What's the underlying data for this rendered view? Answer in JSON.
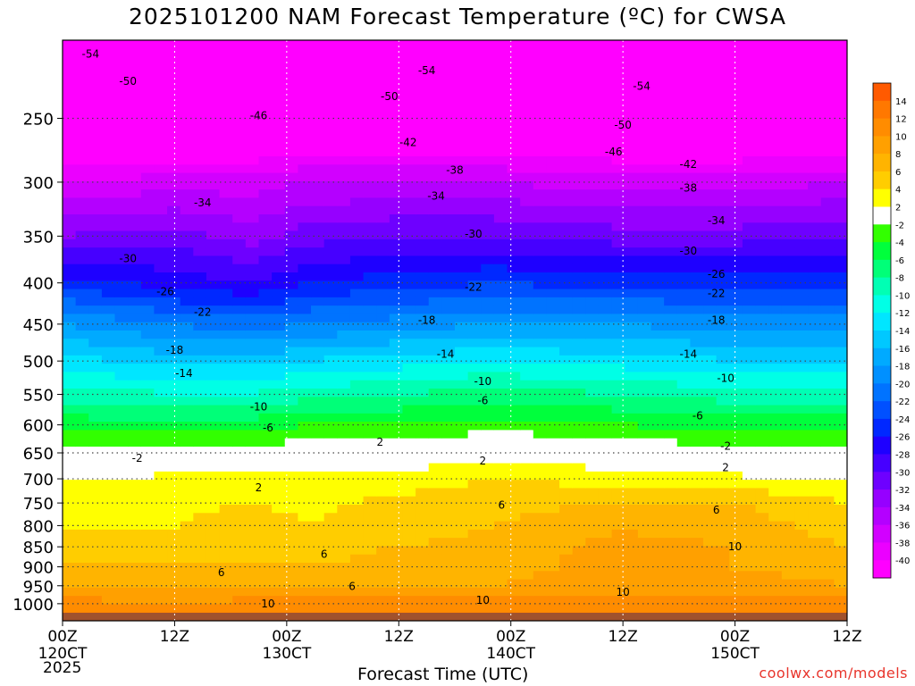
{
  "title": "2025101200 NAM Forecast Temperature (ºC) for CWSA",
  "xlabel": "Forecast Time (UTC)",
  "credit": "coolwx.com/models",
  "year": "2025",
  "chart_data": {
    "type": "heatmap",
    "subtype": "filled-contour time-height cross section",
    "title": "2025101200 NAM Forecast Temperature (ºC) for CWSA",
    "xlabel": "Forecast Time (UTC)",
    "ylabel": "",
    "y_scale": "log-pressure (inverted)",
    "ylim": [
      1050,
      200
    ],
    "xlim_hours": [
      0,
      84
    ],
    "y_ticks": [
      250,
      300,
      350,
      400,
      450,
      500,
      550,
      600,
      650,
      700,
      750,
      800,
      850,
      900,
      950,
      1000
    ],
    "x_ticks": [
      {
        "h": 0,
        "time": "00Z",
        "date": "120CT"
      },
      {
        "h": 12,
        "time": "12Z",
        "date": ""
      },
      {
        "h": 24,
        "time": "00Z",
        "date": "130CT"
      },
      {
        "h": 36,
        "time": "12Z",
        "date": ""
      },
      {
        "h": 48,
        "time": "00Z",
        "date": "140CT"
      },
      {
        "h": 60,
        "time": "12Z",
        "date": ""
      },
      {
        "h": 72,
        "time": "00Z",
        "date": "150CT"
      },
      {
        "h": 84,
        "time": "12Z",
        "date": ""
      }
    ],
    "colorbar": {
      "labels": [
        "14",
        "12",
        "10",
        "8",
        "6",
        "4",
        "2",
        "-2",
        "-4",
        "-6",
        "-8",
        "-10",
        "-12",
        "-14",
        "-16",
        "-18",
        "-20",
        "-22",
        "-24",
        "-26",
        "-28",
        "-30",
        "-32",
        "-34",
        "-36",
        "-38",
        "-40"
      ],
      "bands": [
        {
          "lo": 14,
          "hi": 16,
          "color": "#ff5a00"
        },
        {
          "lo": 12,
          "hi": 14,
          "color": "#ff7800"
        },
        {
          "lo": 10,
          "hi": 12,
          "color": "#ff8c00"
        },
        {
          "lo": 8,
          "hi": 10,
          "color": "#ffa000"
        },
        {
          "lo": 6,
          "hi": 8,
          "color": "#ffb400"
        },
        {
          "lo": 4,
          "hi": 6,
          "color": "#ffcd00"
        },
        {
          "lo": 2,
          "hi": 4,
          "color": "#ffff00"
        },
        {
          "lo": -2,
          "hi": 2,
          "color": "#ffffff"
        },
        {
          "lo": -4,
          "hi": -2,
          "color": "#32ff00"
        },
        {
          "lo": -6,
          "hi": -4,
          "color": "#00ff3c"
        },
        {
          "lo": -8,
          "hi": -6,
          "color": "#00ff78"
        },
        {
          "lo": -10,
          "hi": -8,
          "color": "#00ffb4"
        },
        {
          "lo": -12,
          "hi": -10,
          "color": "#00ffe6"
        },
        {
          "lo": -14,
          "hi": -12,
          "color": "#00e6ff"
        },
        {
          "lo": -16,
          "hi": -14,
          "color": "#00c8ff"
        },
        {
          "lo": -18,
          "hi": -16,
          "color": "#00aaff"
        },
        {
          "lo": -20,
          "hi": -18,
          "color": "#0090ff"
        },
        {
          "lo": -22,
          "hi": -20,
          "color": "#0073ff"
        },
        {
          "lo": -24,
          "hi": -22,
          "color": "#0050ff"
        },
        {
          "lo": -26,
          "hi": -24,
          "color": "#0028ff"
        },
        {
          "lo": -28,
          "hi": -26,
          "color": "#1e00ff"
        },
        {
          "lo": -30,
          "hi": -28,
          "color": "#4600ff"
        },
        {
          "lo": -32,
          "hi": -30,
          "color": "#6e00ff"
        },
        {
          "lo": -34,
          "hi": -32,
          "color": "#9600ff"
        },
        {
          "lo": -36,
          "hi": -34,
          "color": "#b400ff"
        },
        {
          "lo": -38,
          "hi": -36,
          "color": "#d200ff"
        },
        {
          "lo": -40,
          "hi": -38,
          "color": "#eb00ff"
        },
        {
          "lo": -60,
          "hi": -40,
          "color": "#ff00ff"
        }
      ]
    },
    "profiles": [
      {
        "h": 0,
        "levels": [
          [
            1050,
            14
          ],
          [
            1000,
            11
          ],
          [
            950,
            8
          ],
          [
            900,
            6
          ],
          [
            850,
            5
          ],
          [
            800,
            4
          ],
          [
            750,
            3.5
          ],
          [
            700,
            2
          ],
          [
            650,
            -1
          ],
          [
            600,
            -5
          ],
          [
            550,
            -9
          ],
          [
            500,
            -13
          ],
          [
            450,
            -18
          ],
          [
            400,
            -25
          ],
          [
            350,
            -32
          ],
          [
            300,
            -38
          ],
          [
            250,
            -46
          ],
          [
            200,
            -52
          ]
        ]
      },
      {
        "h": 12,
        "levels": [
          [
            1050,
            14
          ],
          [
            1000,
            10
          ],
          [
            950,
            7
          ],
          [
            900,
            6
          ],
          [
            850,
            5
          ],
          [
            800,
            4
          ],
          [
            750,
            3.5
          ],
          [
            700,
            2.5
          ],
          [
            650,
            -1
          ],
          [
            600,
            -5
          ],
          [
            550,
            -10
          ],
          [
            500,
            -15
          ],
          [
            450,
            -20
          ],
          [
            400,
            -27
          ],
          [
            350,
            -31
          ],
          [
            300,
            -37
          ],
          [
            250,
            -46
          ],
          [
            200,
            -53
          ]
        ]
      },
      {
        "h": 20,
        "levels": [
          [
            1050,
            14
          ],
          [
            1000,
            11
          ],
          [
            950,
            7
          ],
          [
            900,
            6
          ],
          [
            850,
            6
          ],
          [
            800,
            5
          ],
          [
            750,
            4
          ],
          [
            700,
            2.5
          ],
          [
            650,
            -1
          ],
          [
            600,
            -5
          ],
          [
            550,
            -10
          ],
          [
            500,
            -15
          ],
          [
            450,
            -21
          ],
          [
            400,
            -28
          ],
          [
            350,
            -33
          ],
          [
            300,
            -37
          ],
          [
            250,
            -46
          ],
          [
            200,
            -53
          ]
        ]
      },
      {
        "h": 26,
        "levels": [
          [
            1050,
            14
          ],
          [
            1000,
            11
          ],
          [
            950,
            7
          ],
          [
            900,
            6
          ],
          [
            850,
            5
          ],
          [
            800,
            4
          ],
          [
            750,
            3.5
          ],
          [
            700,
            2.5
          ],
          [
            650,
            -0.5
          ],
          [
            600,
            -4
          ],
          [
            550,
            -9
          ],
          [
            500,
            -14
          ],
          [
            450,
            -20
          ],
          [
            400,
            -26
          ],
          [
            350,
            -31
          ],
          [
            300,
            -36
          ],
          [
            250,
            -45
          ],
          [
            200,
            -54
          ]
        ]
      },
      {
        "h": 36,
        "levels": [
          [
            1050,
            14
          ],
          [
            1000,
            11
          ],
          [
            950,
            8
          ],
          [
            900,
            7
          ],
          [
            850,
            6
          ],
          [
            800,
            5
          ],
          [
            750,
            4.5
          ],
          [
            700,
            3
          ],
          [
            650,
            0
          ],
          [
            600,
            -4
          ],
          [
            550,
            -8
          ],
          [
            500,
            -13
          ],
          [
            450,
            -19
          ],
          [
            400,
            -25
          ],
          [
            350,
            -30
          ],
          [
            300,
            -36
          ],
          [
            250,
            -45
          ],
          [
            200,
            -54
          ]
        ]
      },
      {
        "h": 46,
        "levels": [
          [
            1050,
            14
          ],
          [
            1000,
            11
          ],
          [
            950,
            8
          ],
          [
            900,
            7
          ],
          [
            850,
            6.5
          ],
          [
            800,
            6
          ],
          [
            750,
            5.5
          ],
          [
            700,
            4
          ],
          [
            650,
            1
          ],
          [
            600,
            -3
          ],
          [
            550,
            -7
          ],
          [
            500,
            -12
          ],
          [
            450,
            -18
          ],
          [
            400,
            -24
          ],
          [
            350,
            -30
          ],
          [
            300,
            -36
          ],
          [
            250,
            -45
          ],
          [
            200,
            -54
          ]
        ]
      },
      {
        "h": 60,
        "levels": [
          [
            1050,
            14
          ],
          [
            1000,
            11
          ],
          [
            950,
            9
          ],
          [
            900,
            9
          ],
          [
            850,
            9
          ],
          [
            800,
            7.5
          ],
          [
            750,
            6
          ],
          [
            700,
            3
          ],
          [
            650,
            0
          ],
          [
            600,
            -4
          ],
          [
            550,
            -8
          ],
          [
            500,
            -13
          ],
          [
            450,
            -18
          ],
          [
            400,
            -25
          ],
          [
            350,
            -31
          ],
          [
            300,
            -37
          ],
          [
            250,
            -46
          ],
          [
            200,
            -54
          ]
        ]
      },
      {
        "h": 72,
        "levels": [
          [
            1050,
            14
          ],
          [
            1000,
            11
          ],
          [
            950,
            9
          ],
          [
            900,
            8
          ],
          [
            850,
            8
          ],
          [
            800,
            7
          ],
          [
            750,
            6
          ],
          [
            700,
            2.5
          ],
          [
            650,
            -1
          ],
          [
            600,
            -5
          ],
          [
            550,
            -9
          ],
          [
            500,
            -14
          ],
          [
            450,
            -19
          ],
          [
            400,
            -25
          ],
          [
            350,
            -31
          ],
          [
            300,
            -37
          ],
          [
            250,
            -46
          ],
          [
            200,
            -54
          ]
        ]
      },
      {
        "h": 84,
        "levels": [
          [
            1050,
            14
          ],
          [
            1000,
            11
          ],
          [
            950,
            8
          ],
          [
            900,
            7
          ],
          [
            850,
            6
          ],
          [
            800,
            5
          ],
          [
            750,
            4
          ],
          [
            700,
            1.5
          ],
          [
            650,
            -1
          ],
          [
            600,
            -5
          ],
          [
            550,
            -9
          ],
          [
            500,
            -14
          ],
          [
            450,
            -19
          ],
          [
            400,
            -25
          ],
          [
            350,
            -30
          ],
          [
            300,
            -36
          ],
          [
            250,
            -46
          ],
          [
            200,
            -54
          ]
        ]
      }
    ],
    "contour_labels": [
      {
        "text": "-54",
        "h": 3,
        "p": 208
      },
      {
        "text": "-50",
        "h": 7,
        "p": 225
      },
      {
        "text": "-46",
        "h": 21,
        "p": 248
      },
      {
        "text": "-42",
        "h": 37,
        "p": 268
      },
      {
        "text": "-38",
        "h": 42,
        "p": 290
      },
      {
        "text": "-34",
        "h": 15,
        "p": 318
      },
      {
        "text": "-34",
        "h": 40,
        "p": 312
      },
      {
        "text": "-30",
        "h": 7,
        "p": 373
      },
      {
        "text": "-26",
        "h": 11,
        "p": 410
      },
      {
        "text": "-22",
        "h": 15,
        "p": 435
      },
      {
        "text": "-18",
        "h": 12,
        "p": 485
      },
      {
        "text": "-14",
        "h": 13,
        "p": 518
      },
      {
        "text": "-10",
        "h": 21,
        "p": 570
      },
      {
        "text": "-6",
        "h": 22,
        "p": 605
      },
      {
        "text": "-2",
        "h": 8,
        "p": 660
      },
      {
        "text": "2",
        "h": 21,
        "p": 718
      },
      {
        "text": "6",
        "h": 17,
        "p": 915
      },
      {
        "text": "6",
        "h": 28,
        "p": 868
      },
      {
        "text": "6",
        "h": 31,
        "p": 952
      },
      {
        "text": "10",
        "h": 22,
        "p": 1000
      },
      {
        "text": "-54",
        "h": 39,
        "p": 218
      },
      {
        "text": "-50",
        "h": 35,
        "p": 235
      },
      {
        "text": "-30",
        "h": 44,
        "p": 348
      },
      {
        "text": "-22",
        "h": 44,
        "p": 405
      },
      {
        "text": "-18",
        "h": 39,
        "p": 445
      },
      {
        "text": "-14",
        "h": 41,
        "p": 490
      },
      {
        "text": "-10",
        "h": 45,
        "p": 530
      },
      {
        "text": "-6",
        "h": 45,
        "p": 560
      },
      {
        "text": "2",
        "h": 34,
        "p": 630
      },
      {
        "text": "2",
        "h": 45,
        "p": 665
      },
      {
        "text": "6",
        "h": 47,
        "p": 755
      },
      {
        "text": "10",
        "h": 45,
        "p": 990
      },
      {
        "text": "-54",
        "h": 62,
        "p": 228
      },
      {
        "text": "-50",
        "h": 60,
        "p": 255
      },
      {
        "text": "-46",
        "h": 59,
        "p": 275
      },
      {
        "text": "-42",
        "h": 67,
        "p": 285
      },
      {
        "text": "-38",
        "h": 67,
        "p": 305
      },
      {
        "text": "-34",
        "h": 70,
        "p": 335
      },
      {
        "text": "-30",
        "h": 67,
        "p": 365
      },
      {
        "text": "-26",
        "h": 70,
        "p": 390
      },
      {
        "text": "-22",
        "h": 70,
        "p": 412
      },
      {
        "text": "-18",
        "h": 70,
        "p": 445
      },
      {
        "text": "-14",
        "h": 67,
        "p": 490
      },
      {
        "text": "-10",
        "h": 71,
        "p": 525
      },
      {
        "text": "-6",
        "h": 68,
        "p": 585
      },
      {
        "text": "-2",
        "h": 71,
        "p": 638
      },
      {
        "text": "2",
        "h": 71,
        "p": 678
      },
      {
        "text": "6",
        "h": 70,
        "p": 765
      },
      {
        "text": "10",
        "h": 72,
        "p": 850
      },
      {
        "text": "10",
        "h": 60,
        "p": 968
      }
    ]
  }
}
